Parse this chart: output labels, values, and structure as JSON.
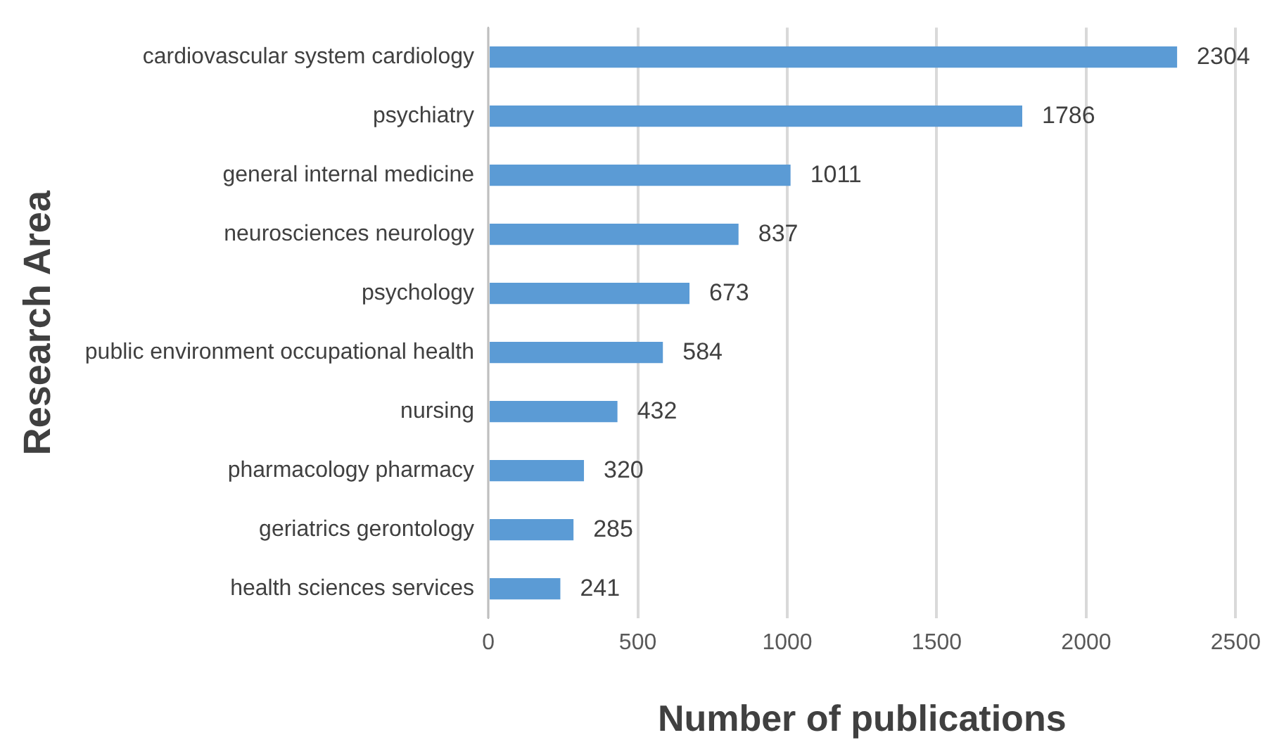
{
  "chart_data": {
    "type": "bar",
    "orientation": "horizontal",
    "xlabel": "Number of publications",
    "ylabel": "Research Area",
    "categories": [
      "cardiovascular system cardiology",
      "psychiatry",
      "general internal medicine",
      "neurosciences neurology",
      "psychology",
      "public environment occupational health",
      "nursing",
      "pharmacology pharmacy",
      "geriatrics gerontology",
      "health sciences services"
    ],
    "values": [
      2304,
      1786,
      1011,
      837,
      673,
      584,
      432,
      320,
      285,
      241
    ],
    "color": "#5b9bd5",
    "xlim": [
      0,
      2500
    ],
    "xticks": [
      0,
      500,
      1000,
      1500,
      2000,
      2500
    ],
    "grid": "x",
    "data_labels": true,
    "legend": false
  }
}
